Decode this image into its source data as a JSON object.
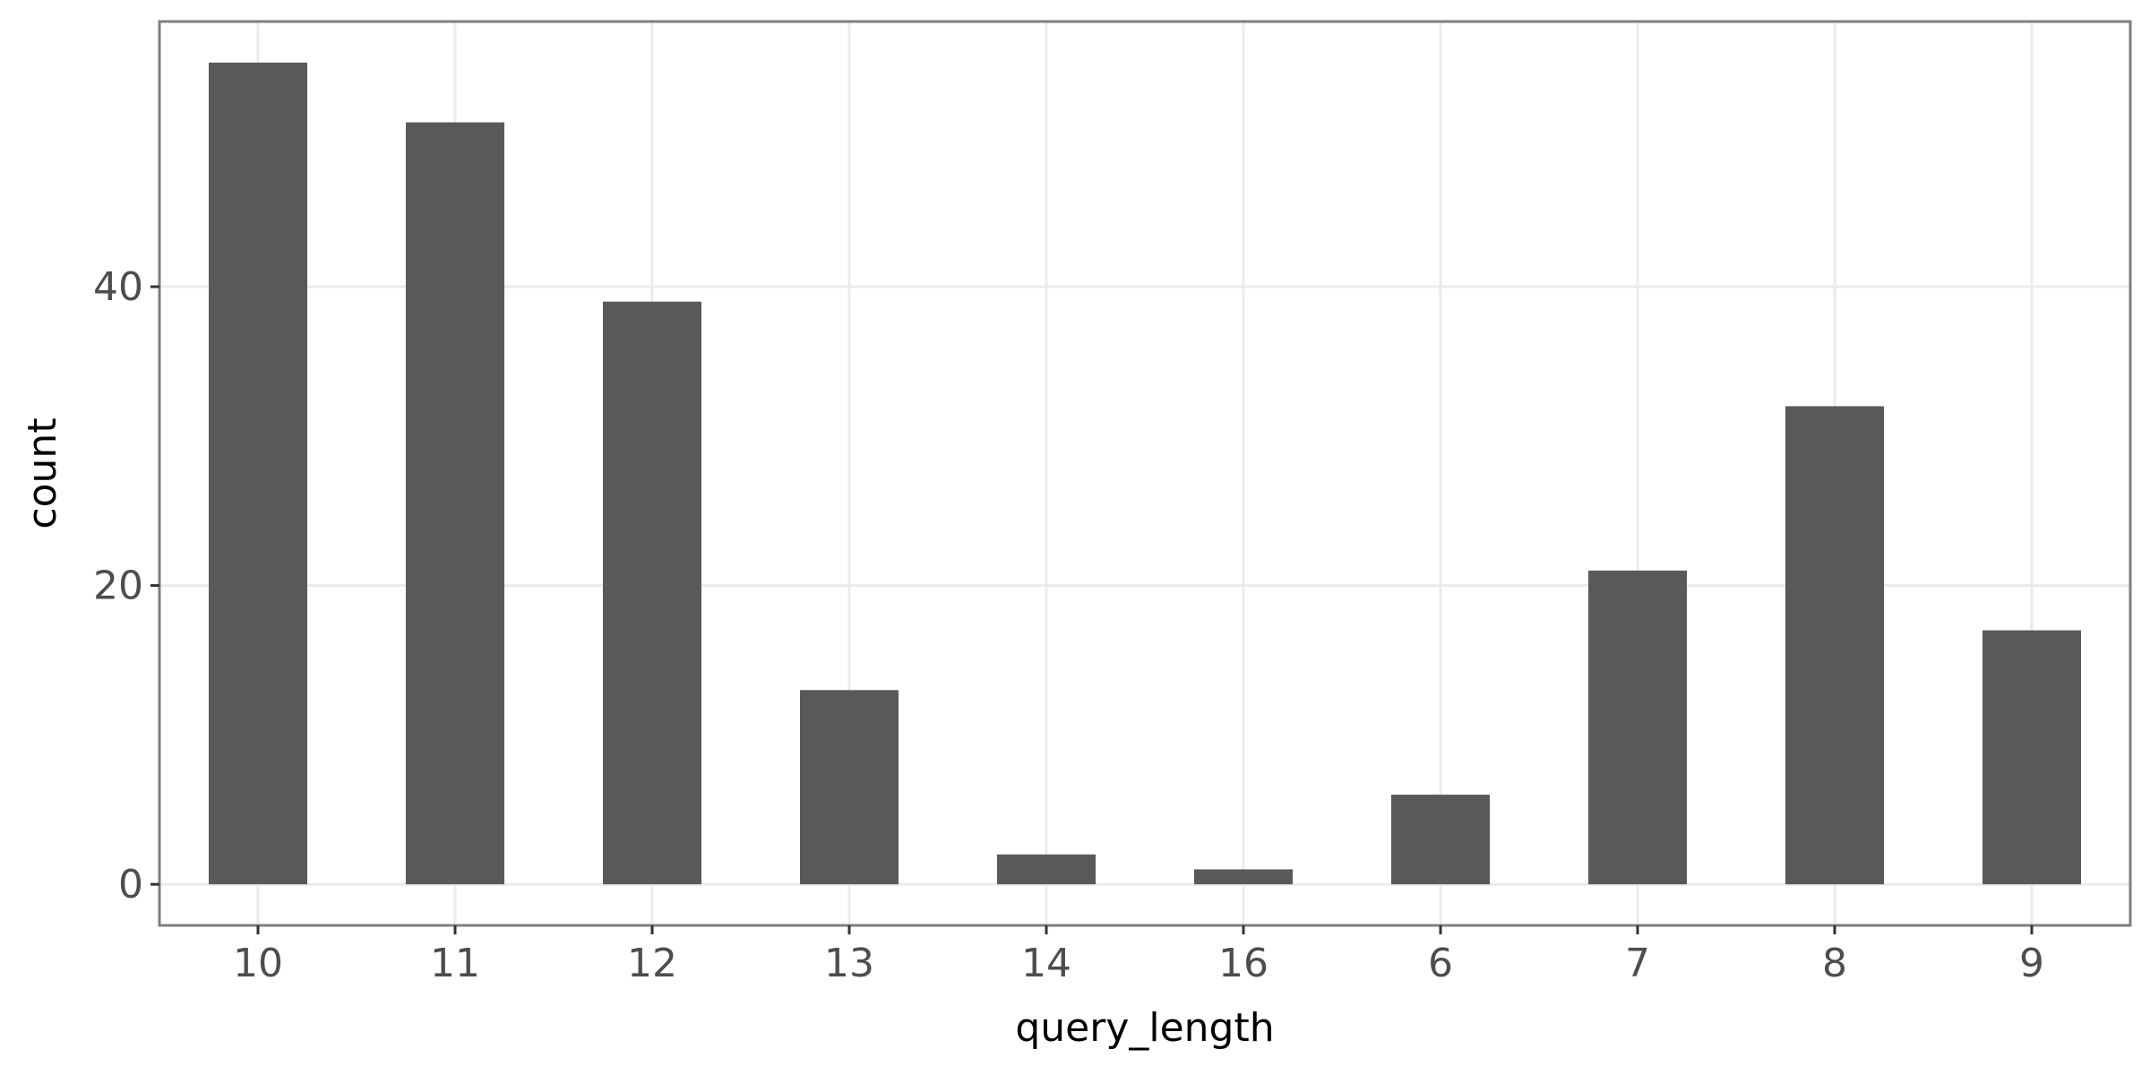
{
  "chart_data": {
    "type": "bar",
    "categories": [
      "10",
      "11",
      "12",
      "13",
      "14",
      "16",
      "6",
      "7",
      "8",
      "9"
    ],
    "values": [
      55,
      51,
      39,
      13,
      2,
      1,
      6,
      21,
      32,
      17
    ],
    "xlabel": "query_length",
    "ylabel": "count",
    "ylim": [
      -2.75,
      57.75
    ],
    "yticks": [
      0,
      20,
      40
    ],
    "ytick_labels": [
      "0",
      "20",
      "40"
    ],
    "grid": true,
    "legend": "none"
  },
  "colors": {
    "bar": "#595959",
    "panel_background": "#ffffff",
    "grid": "#ebebeb",
    "panel_border": "#7f7f7f",
    "tick": "#333333"
  }
}
